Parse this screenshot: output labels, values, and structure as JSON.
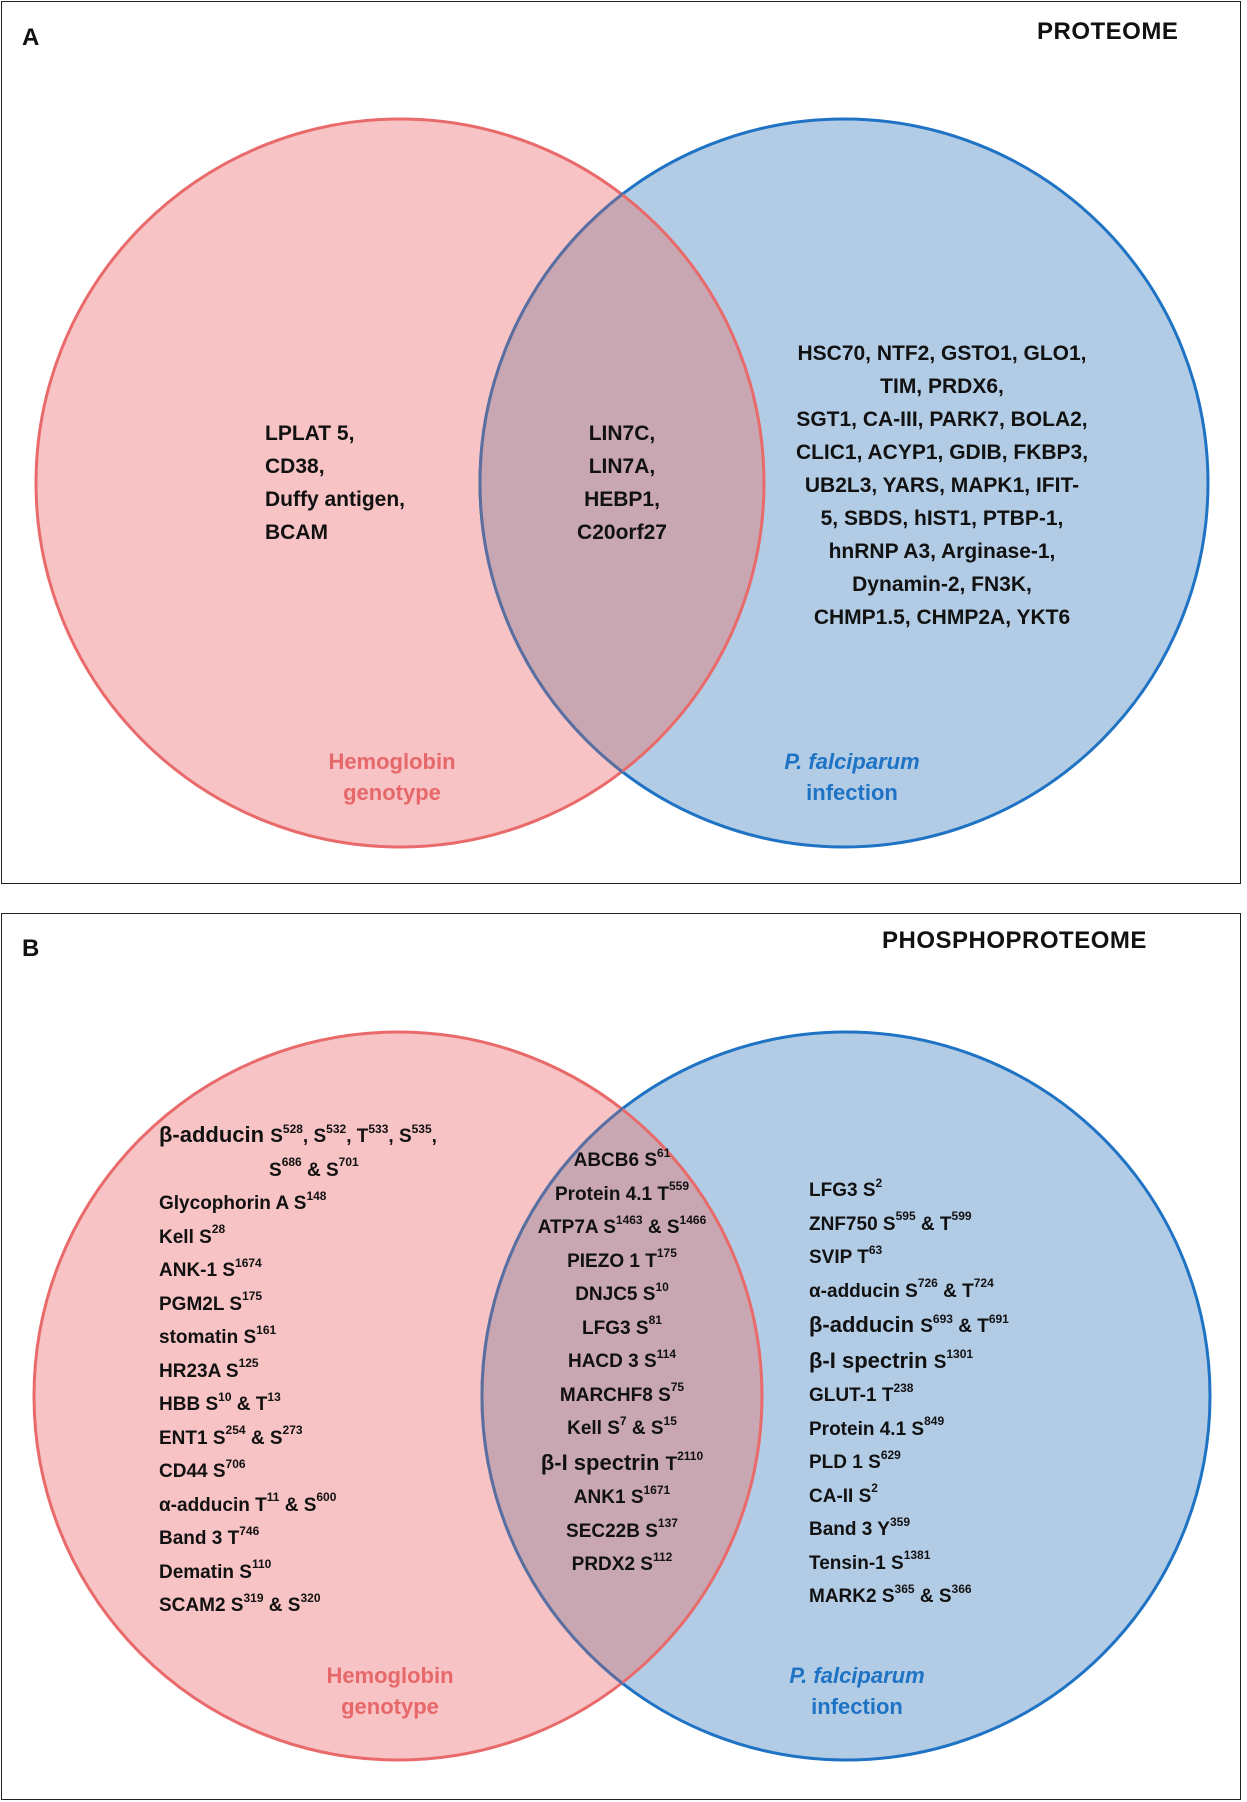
{
  "panel_a": {
    "letter": "A",
    "title": "PROTEOME",
    "left_circle": {
      "label_lines": [
        "Hemoglobin",
        "genotype"
      ],
      "items": [
        "LPLAT 5,",
        "CD38,",
        "Duffy antigen,",
        "BCAM"
      ],
      "fill": "#f7c3c4",
      "stroke": "#e96a6a"
    },
    "overlap": {
      "items": [
        "LIN7C,",
        "LIN7A,",
        "HEBP1,",
        "C20orf27"
      ],
      "fill": "#c8a7b3"
    },
    "right_circle": {
      "label_lines": [
        "P. falciparum",
        "infection"
      ],
      "items": [
        "HSC70, NTF2, GSTO1, GLO1,",
        "TIM, PRDX6,",
        "SGT1, CA-III, PARK7, BOLA2,",
        "CLIC1, ACYP1, GDIB, FKBP3,",
        "UB2L3, YARS, MAPK1, IFIT-",
        "5, SBDS, hIST1, PTBP-1,",
        "hnRNP A3, Arginase-1,",
        "Dynamin-2, FN3K,",
        "CHMP1.5, CHMP2A, YKT6"
      ],
      "fill": "#b3cce6",
      "stroke": "#1f73c4"
    }
  },
  "panel_b": {
    "letter": "B",
    "title": "PHOSPHOPROTEOME",
    "left_circle": {
      "label_lines": [
        "Hemoglobin",
        "genotype"
      ],
      "items": [
        {
          "name": "β-adducin",
          "site": [
            "S",
            "528",
            ", S",
            "532",
            ", T",
            "533",
            ", S",
            "535",
            ","
          ],
          "big": true
        },
        {
          "name": "",
          "site": [
            "S",
            "686",
            " & S",
            "701"
          ],
          "indent": true
        },
        {
          "name": "Glycophorin A",
          "site": [
            "S",
            "148"
          ]
        },
        {
          "name": "Kell",
          "site": [
            "S",
            "28"
          ]
        },
        {
          "name": "ANK-1",
          "site": [
            "S",
            "1674"
          ]
        },
        {
          "name": "PGM2L",
          "site": [
            "S",
            "175"
          ]
        },
        {
          "name": "stomatin",
          "site": [
            "S",
            "161"
          ]
        },
        {
          "name": "HR23A",
          "site": [
            "S",
            "125"
          ]
        },
        {
          "name": "HBB",
          "site": [
            "S",
            "10",
            " & T",
            "13"
          ]
        },
        {
          "name": "ENT1",
          "site": [
            "S",
            "254",
            " & S",
            "273"
          ]
        },
        {
          "name": "CD44",
          "site": [
            "S",
            "706"
          ]
        },
        {
          "name": "α-adducin",
          "site": [
            "T",
            "11",
            " & S",
            "600"
          ]
        },
        {
          "name": "Band 3",
          "site": [
            "T",
            "746"
          ]
        },
        {
          "name": "Dematin",
          "site": [
            "S",
            "110"
          ]
        },
        {
          "name": "SCAM2",
          "site": [
            "S",
            "319",
            " & S",
            "320"
          ]
        }
      ]
    },
    "overlap": {
      "items": [
        {
          "name": "ABCB6",
          "site": [
            "S",
            "61"
          ]
        },
        {
          "name": "Protein  4.1",
          "site": [
            "T",
            "559"
          ]
        },
        {
          "name": "ATP7A",
          "site": [
            "S",
            "1463",
            " & S",
            "1466"
          ]
        },
        {
          "name": "PIEZO 1",
          "site": [
            "T",
            "175"
          ]
        },
        {
          "name": "DNJC5",
          "site": [
            "S",
            "10"
          ]
        },
        {
          "name": "LFG3",
          "site": [
            "S",
            "81"
          ]
        },
        {
          "name": "HACD 3",
          "site": [
            "S",
            "114"
          ]
        },
        {
          "name": "MARCHF8",
          "site": [
            "S",
            "75"
          ]
        },
        {
          "name": "Kell",
          "site": [
            "S",
            "7",
            " & S",
            "15"
          ]
        },
        {
          "name": "β-I spectrin",
          "site": [
            "T",
            "2110"
          ],
          "big": true
        },
        {
          "name": "ANK1",
          "site": [
            "S",
            "1671"
          ]
        },
        {
          "name": "SEC22B",
          "site": [
            "S",
            "137"
          ]
        },
        {
          "name": "PRDX2",
          "site": [
            "S",
            "112"
          ]
        }
      ]
    },
    "right_circle": {
      "label_lines": [
        "P. falciparum",
        "infection"
      ],
      "items": [
        {
          "name": "LFG3",
          "site": [
            "S",
            "2"
          ]
        },
        {
          "name": "ZNF750",
          "site": [
            "S",
            "595",
            " & T",
            "599"
          ]
        },
        {
          "name": "SVIP",
          "site": [
            "T",
            "63"
          ]
        },
        {
          "name": "α-adducin",
          "site": [
            "S",
            "726",
            " & T",
            "724"
          ]
        },
        {
          "name": "β-adducin",
          "site": [
            "S",
            "693",
            " & T",
            "691"
          ],
          "big": true
        },
        {
          "name": "β-I spectrin",
          "site": [
            "S",
            "1301"
          ],
          "big": true
        },
        {
          "name": "GLUT-1",
          "site": [
            "T",
            "238"
          ]
        },
        {
          "name": "Protein 4.1",
          "site": [
            "S",
            "849"
          ]
        },
        {
          "name": "PLD 1",
          "site": [
            "S",
            "629"
          ]
        },
        {
          "name": "CA-II",
          "site": [
            "S",
            "2"
          ]
        },
        {
          "name": "Band 3",
          "site": [
            "Y",
            "359"
          ]
        },
        {
          "name": "Tensin-1",
          "site": [
            "S",
            "1381"
          ]
        },
        {
          "name": "MARK2",
          "site": [
            "S",
            "365",
            " & S",
            "366"
          ]
        }
      ]
    }
  }
}
